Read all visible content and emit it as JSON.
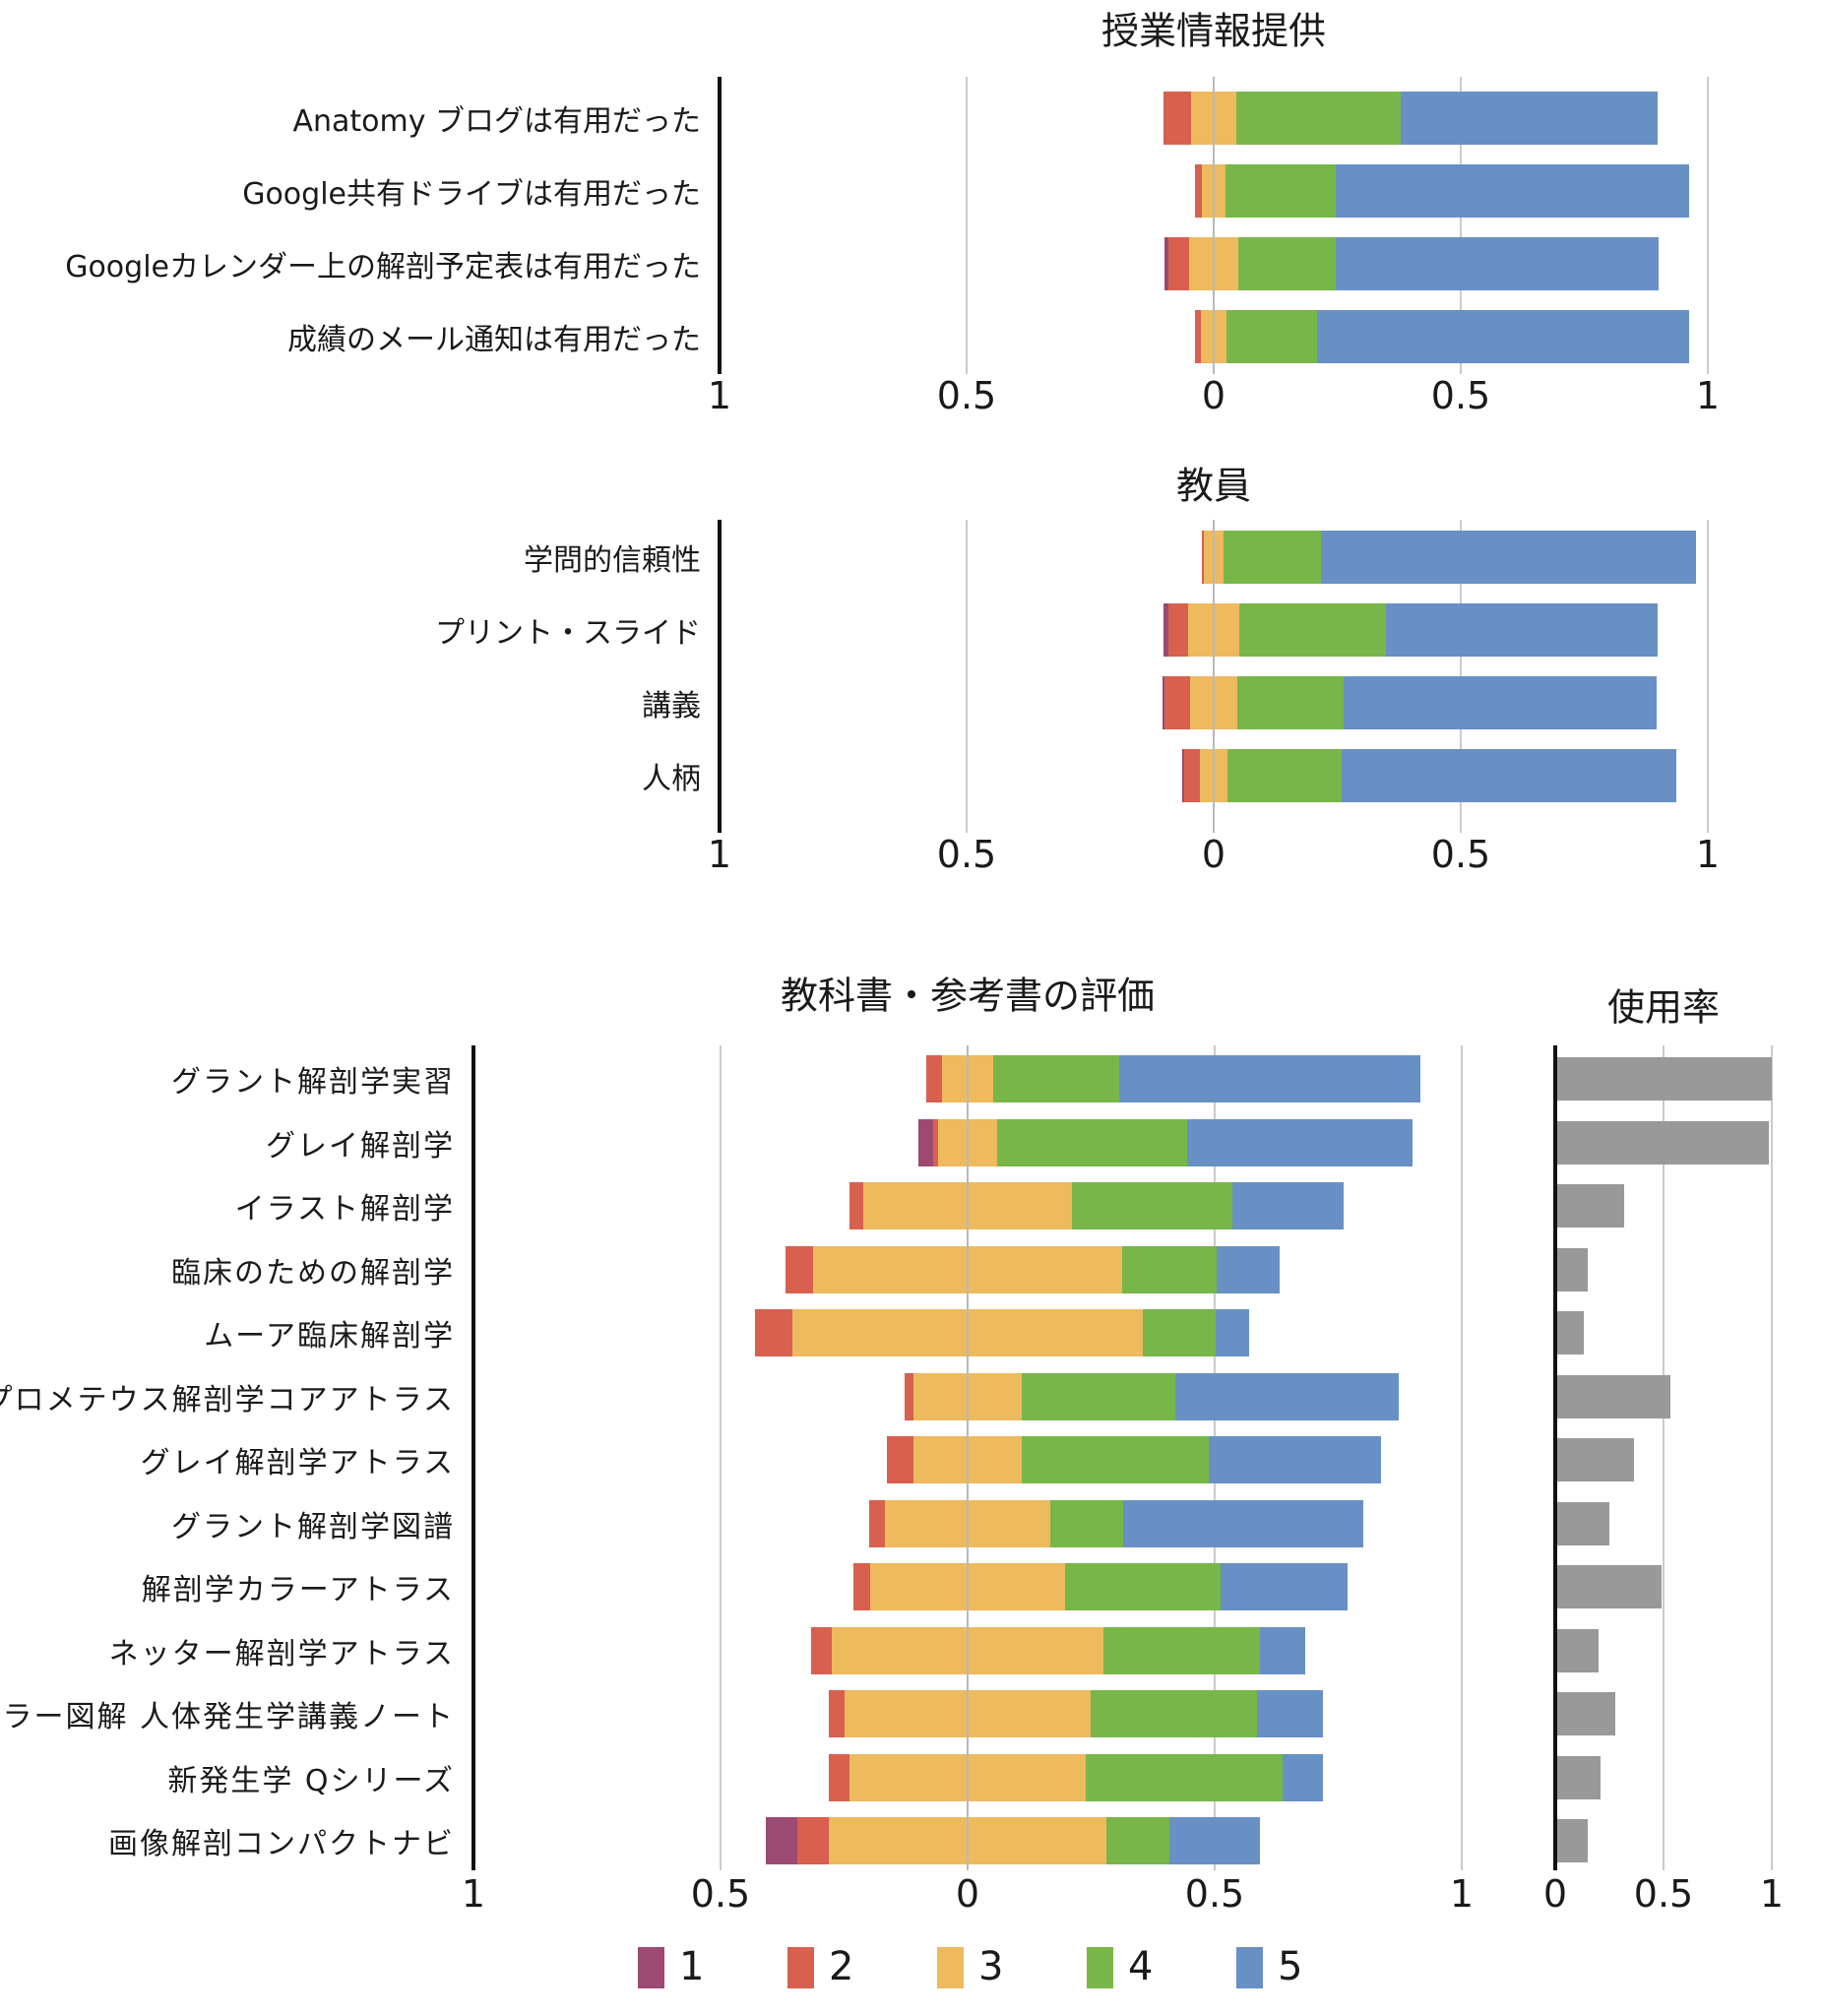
{
  "colors": {
    "likert_1": "#9c4a72",
    "likert_2": "#d7604f",
    "likert_3": "#edba5e",
    "likert_4": "#79b649",
    "likert_5": "#6890c4",
    "usage_bar": "#999999",
    "gridline": "#cbcbcb",
    "axis": "#111111",
    "text": "#1a1a1a"
  },
  "legend": {
    "position": "bottom",
    "items": [
      {
        "label": "1",
        "color": "#9c4a72"
      },
      {
        "label": "2",
        "color": "#d7604f"
      },
      {
        "label": "3",
        "color": "#edba5e"
      },
      {
        "label": "4",
        "color": "#79b649"
      },
      {
        "label": "5",
        "color": "#6890c4"
      }
    ]
  },
  "chart_data": [
    {
      "type": "bar",
      "variant": "diverging-stacked-likert",
      "orientation": "horizontal",
      "title": "授業情報提供",
      "neutral_series": "3",
      "categories": [
        "Anatomy ブログは有用だった",
        "Google共有ドライブは有用だった",
        "Googleカレンダー上の解剖予定表は有用だった",
        "成績のメール通知は有用だった"
      ],
      "series": [
        {
          "name": "1",
          "values": [
            0.0,
            0.0,
            0.007,
            0.0
          ]
        },
        {
          "name": "2",
          "values": [
            0.057,
            0.015,
            0.042,
            0.013
          ]
        },
        {
          "name": "3",
          "values": [
            0.09,
            0.046,
            0.1,
            0.05
          ]
        },
        {
          "name": "4",
          "values": [
            0.333,
            0.225,
            0.197,
            0.185
          ]
        },
        {
          "name": "5",
          "values": [
            0.52,
            0.714,
            0.654,
            0.752
          ]
        }
      ],
      "x_axis": {
        "range": [
          -1,
          1
        ],
        "tick_values": [
          -1,
          -0.5,
          0,
          0.5,
          1
        ],
        "tick_labels": [
          "1",
          "0.5",
          "0",
          "0.5",
          "1"
        ],
        "gridlines": [
          -0.5,
          0.5,
          1
        ],
        "zero_line_over_bars": true,
        "axis_line_at": -1
      }
    },
    {
      "type": "bar",
      "variant": "diverging-stacked-likert",
      "orientation": "horizontal",
      "title": "教員",
      "neutral_series": "3",
      "categories": [
        "学問的信頼性",
        "プリント・スライド",
        "講義",
        "人柄"
      ],
      "series": [
        {
          "name": "1",
          "values": [
            0.0,
            0.01,
            0.003,
            0.005
          ]
        },
        {
          "name": "2",
          "values": [
            0.005,
            0.04,
            0.052,
            0.031
          ]
        },
        {
          "name": "3",
          "values": [
            0.038,
            0.103,
            0.097,
            0.057
          ]
        },
        {
          "name": "4",
          "values": [
            0.198,
            0.298,
            0.214,
            0.231
          ]
        },
        {
          "name": "5",
          "values": [
            0.759,
            0.549,
            0.634,
            0.676
          ]
        }
      ],
      "x_axis": {
        "range": [
          -1,
          1
        ],
        "tick_values": [
          -1,
          -0.5,
          0,
          0.5,
          1
        ],
        "tick_labels": [
          "1",
          "0.5",
          "0",
          "0.5",
          "1"
        ],
        "gridlines": [
          -0.5,
          0.5,
          1
        ],
        "zero_line_over_bars": true,
        "axis_line_at": -1
      }
    },
    {
      "type": "bar",
      "variant": "diverging-stacked-likert",
      "orientation": "horizontal",
      "title": "教科書・参考書の評価",
      "neutral_series": "3",
      "categories": [
        "グラント解剖学実習",
        "グレイ解剖学",
        "イラスト解剖学",
        "臨床のための解剖学",
        "ムーア臨床解剖学",
        "プロメテウス解剖学コアアトラス",
        "グレイ解剖学アトラス",
        "グラント解剖学図譜",
        "解剖学カラーアトラス",
        "ネッター解剖学アトラス",
        "カラー図解 人体発生学講義ノート",
        "新発生学 Qシリーズ",
        "画像解剖コンパクトナビ"
      ],
      "series": [
        {
          "name": "1",
          "values": [
            0.0,
            0.03,
            0.0,
            0.0,
            0.0,
            0.0,
            0.0,
            0.0,
            0.0,
            0.0,
            0.0,
            0.0,
            0.065
          ]
        },
        {
          "name": "2",
          "values": [
            0.032,
            0.01,
            0.028,
            0.057,
            0.076,
            0.018,
            0.053,
            0.033,
            0.033,
            0.043,
            0.031,
            0.04,
            0.064
          ]
        },
        {
          "name": "3",
          "values": [
            0.104,
            0.12,
            0.424,
            0.625,
            0.71,
            0.22,
            0.22,
            0.334,
            0.395,
            0.548,
            0.499,
            0.48,
            0.56
          ]
        },
        {
          "name": "4",
          "values": [
            0.254,
            0.385,
            0.323,
            0.192,
            0.147,
            0.31,
            0.379,
            0.147,
            0.314,
            0.318,
            0.336,
            0.397,
            0.128
          ]
        },
        {
          "name": "5",
          "values": [
            0.61,
            0.455,
            0.225,
            0.126,
            0.067,
            0.452,
            0.348,
            0.486,
            0.258,
            0.091,
            0.134,
            0.083,
            0.183
          ]
        }
      ],
      "x_axis": {
        "range": [
          -1,
          1
        ],
        "tick_values": [
          -1,
          -0.5,
          0,
          0.5,
          1
        ],
        "tick_labels": [
          "1",
          "0.5",
          "0",
          "0.5",
          "1"
        ],
        "gridlines": [
          -0.5,
          0.5,
          1
        ],
        "zero_line_over_bars": true,
        "axis_line_at": -1
      }
    },
    {
      "type": "bar",
      "variant": "plain",
      "orientation": "horizontal",
      "title": "使用率",
      "categories": [
        "グラント解剖学実習",
        "グレイ解剖学",
        "イラスト解剖学",
        "臨床のための解剖学",
        "ムーア臨床解剖学",
        "プロメテウス解剖学コアアトラス",
        "グレイ解剖学アトラス",
        "グラント解剖学図譜",
        "解剖学カラーアトラス",
        "ネッター解剖学アトラス",
        "カラー図解 人体発生学講義ノート",
        "新発生学 Qシリーズ",
        "画像解剖コンパクトナビ"
      ],
      "values": [
        1.0,
        0.985,
        0.32,
        0.15,
        0.13,
        0.53,
        0.365,
        0.25,
        0.49,
        0.2,
        0.275,
        0.21,
        0.15
      ],
      "x_axis": {
        "range": [
          0,
          1
        ],
        "tick_values": [
          0,
          0.5,
          1
        ],
        "tick_labels": [
          "0",
          "0.5",
          "1"
        ],
        "gridlines": [
          0.5,
          1
        ],
        "axis_line_at": 0
      }
    }
  ]
}
